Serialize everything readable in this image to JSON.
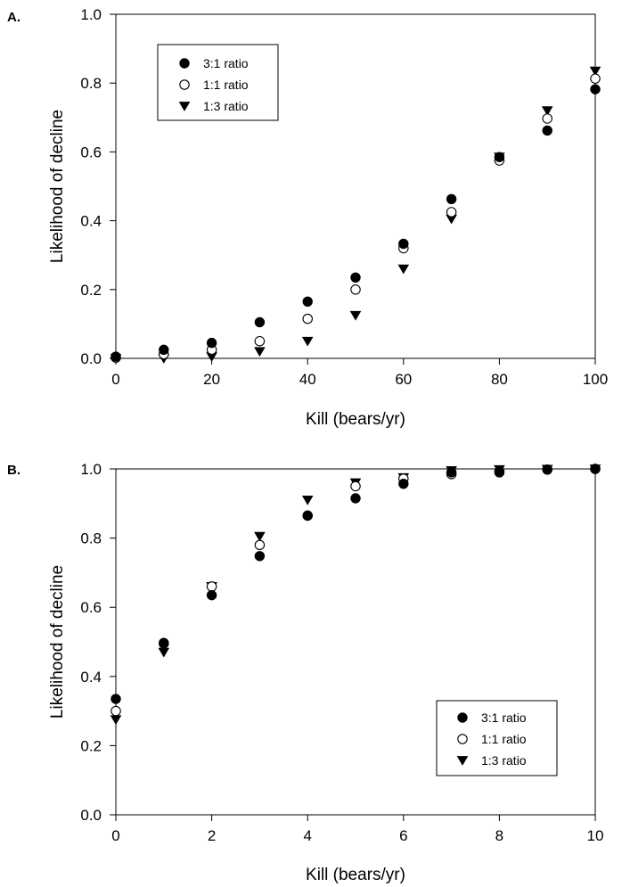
{
  "chart_data": [
    {
      "panel_label": "A.",
      "type": "scatter",
      "xlabel": "Kill (bears/yr)",
      "ylabel": "Likelihood of decline",
      "xlim": [
        0,
        100
      ],
      "ylim": [
        0,
        1.0
      ],
      "xticks": [
        "0",
        "20",
        "40",
        "60",
        "80",
        "100"
      ],
      "yticks": [
        "0.0",
        "0.2",
        "0.4",
        "0.6",
        "0.8",
        "1.0"
      ],
      "grid": false,
      "legend_position": "top-left",
      "x": [
        0,
        10,
        20,
        30,
        40,
        50,
        60,
        70,
        80,
        90,
        100
      ],
      "series": [
        {
          "name": "3:1 ratio",
          "marker": "filled-circle",
          "values": [
            0.005,
            0.025,
            0.045,
            0.105,
            0.165,
            0.235,
            0.333,
            0.463,
            0.585,
            0.662,
            0.782
          ]
        },
        {
          "name": "1:1 ratio",
          "marker": "open-circle",
          "values": [
            0.002,
            0.012,
            0.025,
            0.05,
            0.115,
            0.2,
            0.32,
            0.425,
            0.575,
            0.697,
            0.813
          ]
        },
        {
          "name": "1:3 ratio",
          "marker": "filled-triangle-down",
          "values": [
            0.0,
            0.0,
            0.005,
            0.02,
            0.05,
            0.125,
            0.26,
            0.405,
            0.585,
            0.72,
            0.835
          ]
        }
      ]
    },
    {
      "panel_label": "B.",
      "type": "scatter",
      "xlabel": "Kill (bears/yr)",
      "ylabel": "Likelihood of decline",
      "xlim": [
        0,
        10
      ],
      "ylim": [
        0,
        1.0
      ],
      "xticks": [
        "0",
        "2",
        "4",
        "6",
        "8",
        "10"
      ],
      "yticks": [
        "0.0",
        "0.2",
        "0.4",
        "0.6",
        "0.8",
        "1.0"
      ],
      "grid": false,
      "legend_position": "bottom-right",
      "x": [
        0,
        1,
        2,
        3,
        4,
        5,
        6,
        7,
        8,
        9,
        10
      ],
      "series": [
        {
          "name": "3:1 ratio",
          "marker": "filled-circle",
          "values": [
            0.335,
            0.497,
            0.635,
            0.748,
            0.865,
            0.915,
            0.957,
            0.99,
            0.993,
            0.998,
            1.0
          ]
        },
        {
          "name": "1:1 ratio",
          "marker": "open-circle",
          "values": [
            0.3,
            0.495,
            0.66,
            0.78,
            0.865,
            0.95,
            0.972,
            0.985,
            0.99,
            0.998,
            1.0
          ]
        },
        {
          "name": "1:3 ratio",
          "marker": "filled-triangle-down",
          "values": [
            0.275,
            0.47,
            0.66,
            0.805,
            0.91,
            0.96,
            0.975,
            0.995,
            0.998,
            0.999,
            1.0
          ]
        }
      ]
    }
  ]
}
